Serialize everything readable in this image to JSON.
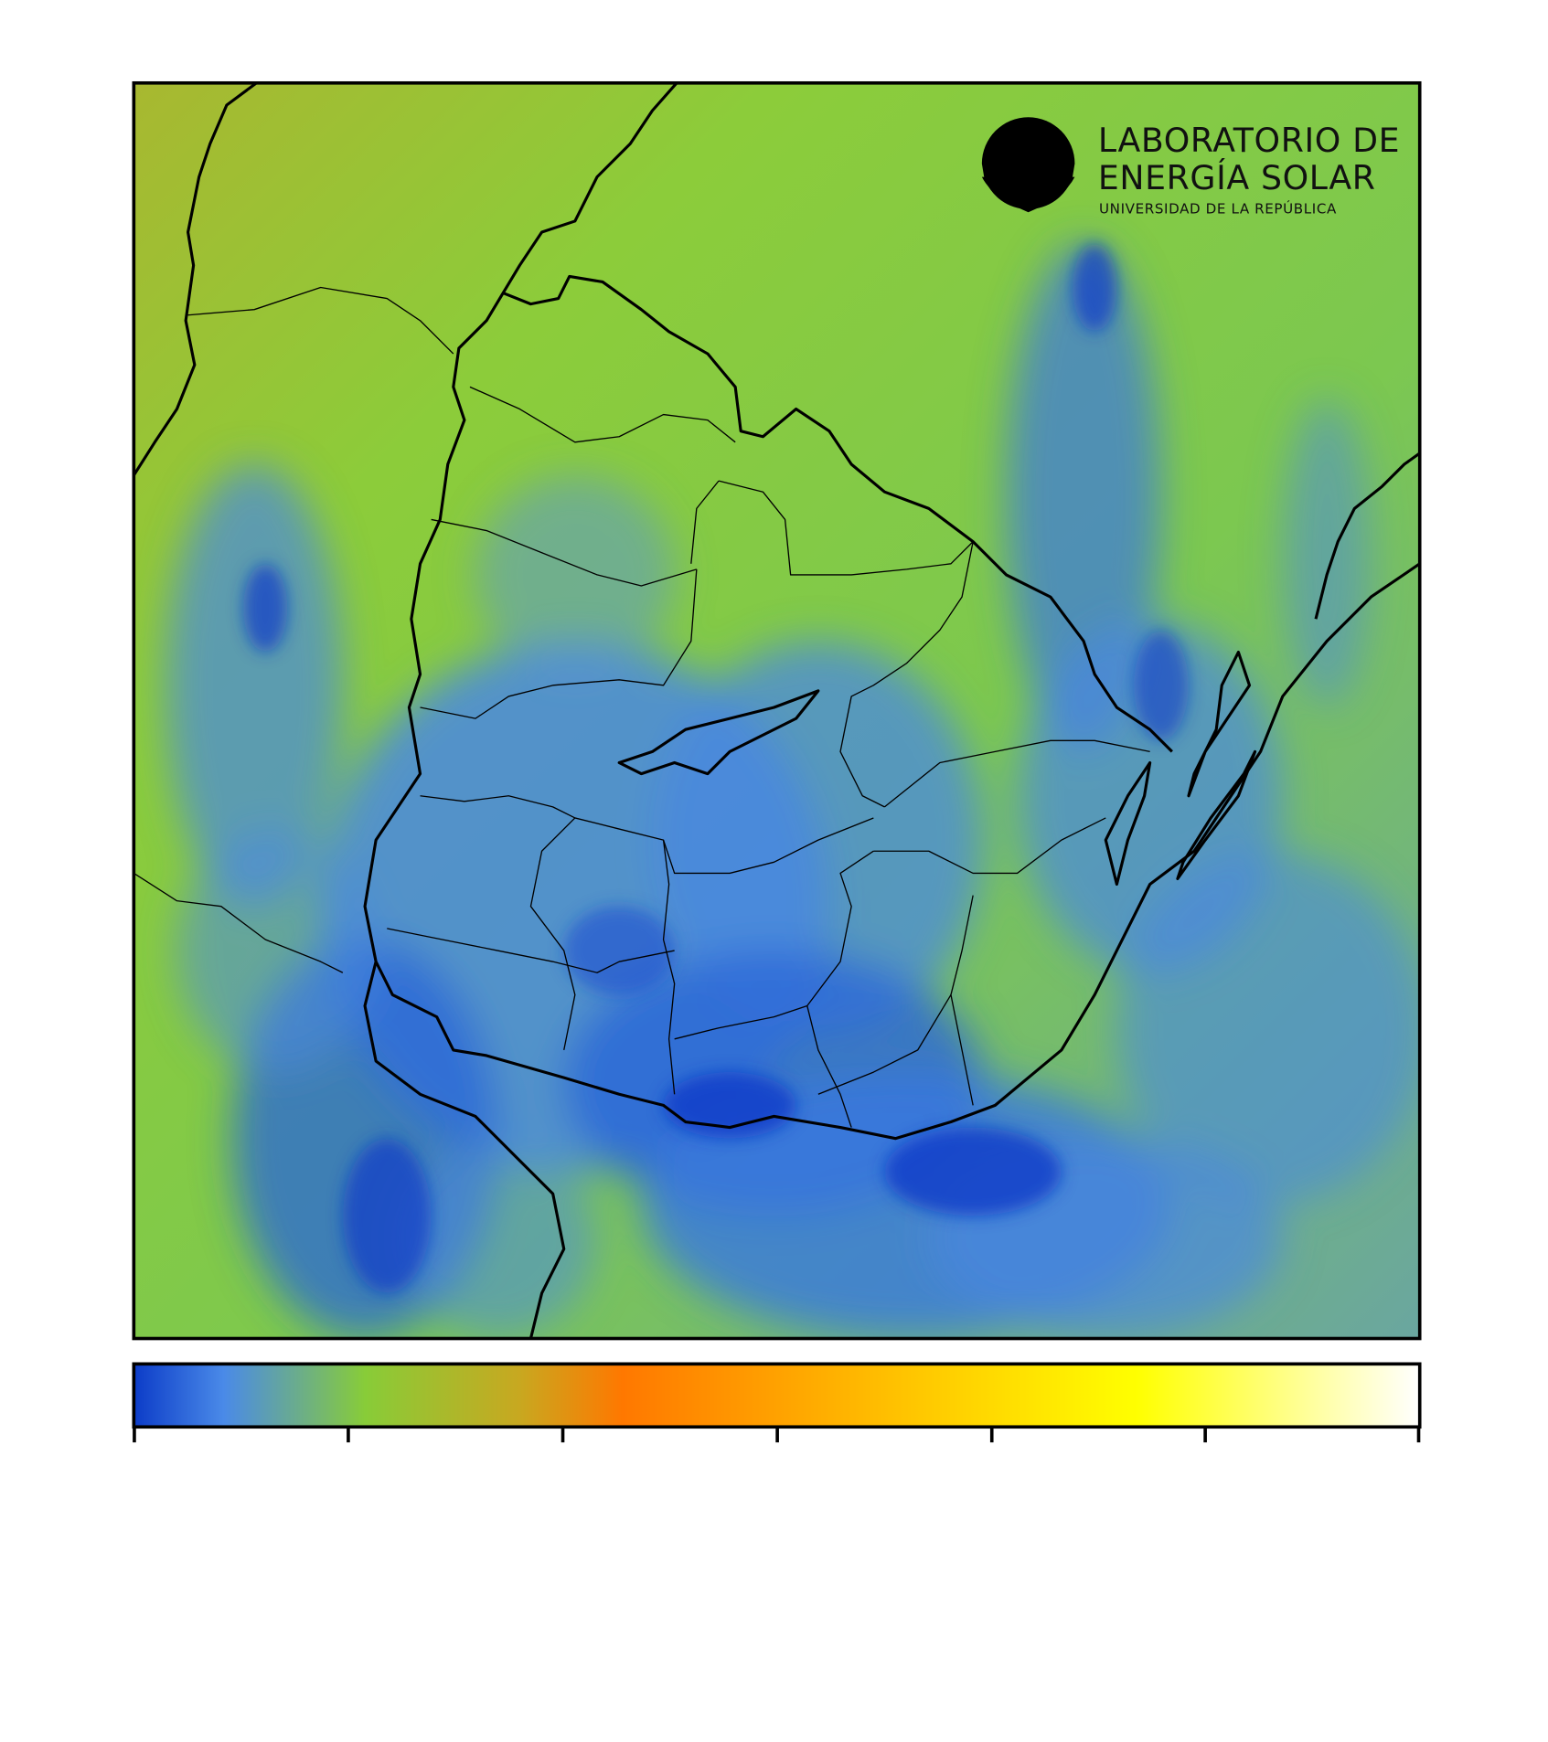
{
  "logo": {
    "line1": "LABORATORIO DE",
    "line2": "ENERGÍA SOLAR",
    "subtitle": "UNIVERSIDAD DE LA REPÚBLICA"
  }
}
